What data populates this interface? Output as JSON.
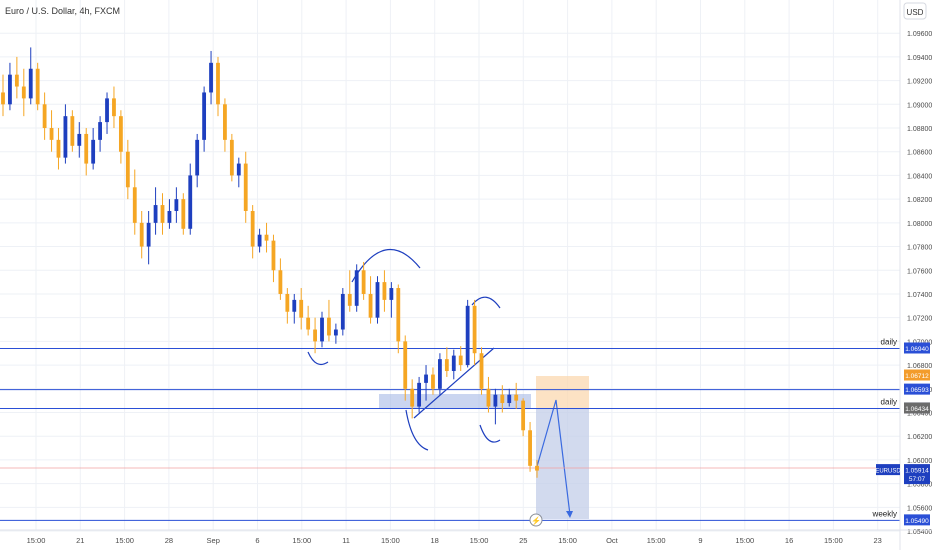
{
  "header": {
    "symbol_title": "Euro / U.S. Dollar, 4h, FXCM"
  },
  "currency_button": "USD",
  "colors": {
    "bull": "#1e3fbf",
    "bear": "#f5a623",
    "hline": "#2a4fd6",
    "grid": "#eef1f6",
    "text": "#4a4a4a",
    "price_line": "#f0a0a0"
  },
  "chart_data": {
    "type": "candlestick",
    "ylim": [
      1.0524,
      1.0988
    ],
    "y_ticks": [
      "1.09600",
      "1.09400",
      "1.09200",
      "1.09000",
      "1.08800",
      "1.08600",
      "1.08400",
      "1.08200",
      "1.08000",
      "1.07800",
      "1.07600",
      "1.07400",
      "1.07200",
      "1.07000",
      "1.06800",
      "1.06600",
      "1.06400",
      "1.06200",
      "1.06000",
      "1.05800",
      "1.05600",
      "1.05400"
    ],
    "x_ticks": [
      "15:00",
      "21",
      "15:00",
      "28",
      "Sep",
      "6",
      "15:00",
      "11",
      "15:00",
      "18",
      "15:00",
      "25",
      "15:00",
      "Oct",
      "15:00",
      "9",
      "15:00",
      "16",
      "15:00",
      "23"
    ],
    "candles": [
      [
        1.091,
        1.0925,
        1.089,
        1.09
      ],
      [
        1.09,
        1.0935,
        1.0895,
        1.0925
      ],
      [
        1.0925,
        1.094,
        1.0905,
        1.0915
      ],
      [
        1.0915,
        1.093,
        1.089,
        1.0905
      ],
      [
        1.0905,
        1.0948,
        1.09,
        1.093
      ],
      [
        1.093,
        1.0935,
        1.0895,
        1.09
      ],
      [
        1.09,
        1.091,
        1.087,
        1.088
      ],
      [
        1.088,
        1.0895,
        1.086,
        1.087
      ],
      [
        1.087,
        1.088,
        1.0845,
        1.0855
      ],
      [
        1.0855,
        1.09,
        1.085,
        1.089
      ],
      [
        1.089,
        1.0895,
        1.086,
        1.0865
      ],
      [
        1.0865,
        1.0885,
        1.0855,
        1.0875
      ],
      [
        1.0875,
        1.088,
        1.084,
        1.085
      ],
      [
        1.085,
        1.088,
        1.0845,
        1.087
      ],
      [
        1.087,
        1.089,
        1.086,
        1.0885
      ],
      [
        1.0885,
        1.091,
        1.0875,
        1.0905
      ],
      [
        1.0905,
        1.0915,
        1.088,
        1.089
      ],
      [
        1.089,
        1.0895,
        1.085,
        1.086
      ],
      [
        1.086,
        1.087,
        1.082,
        1.083
      ],
      [
        1.083,
        1.0845,
        1.079,
        1.08
      ],
      [
        1.08,
        1.081,
        1.077,
        1.078
      ],
      [
        1.078,
        1.081,
        1.0765,
        1.08
      ],
      [
        1.08,
        1.083,
        1.079,
        1.0815
      ],
      [
        1.0815,
        1.0825,
        1.079,
        1.08
      ],
      [
        1.08,
        1.082,
        1.0795,
        1.081
      ],
      [
        1.081,
        1.083,
        1.08,
        1.082
      ],
      [
        1.082,
        1.0825,
        1.079,
        1.0795
      ],
      [
        1.0795,
        1.085,
        1.079,
        1.084
      ],
      [
        1.084,
        1.0875,
        1.083,
        1.087
      ],
      [
        1.087,
        1.0915,
        1.086,
        1.091
      ],
      [
        1.091,
        1.0945,
        1.09,
        1.0935
      ],
      [
        1.0935,
        1.094,
        1.089,
        1.09
      ],
      [
        1.09,
        1.0905,
        1.086,
        1.087
      ],
      [
        1.087,
        1.0875,
        1.0835,
        1.084
      ],
      [
        1.084,
        1.0855,
        1.083,
        1.085
      ],
      [
        1.085,
        1.086,
        1.08,
        1.081
      ],
      [
        1.081,
        1.0815,
        1.077,
        1.078
      ],
      [
        1.078,
        1.0795,
        1.0775,
        1.079
      ],
      [
        1.079,
        1.08,
        1.0775,
        1.0785
      ],
      [
        1.0785,
        1.079,
        1.075,
        1.076
      ],
      [
        1.076,
        1.077,
        1.0735,
        1.074
      ],
      [
        1.074,
        1.0745,
        1.0715,
        1.0725
      ],
      [
        1.0725,
        1.074,
        1.0715,
        1.0735
      ],
      [
        1.0735,
        1.0745,
        1.071,
        1.072
      ],
      [
        1.072,
        1.073,
        1.0705,
        1.071
      ],
      [
        1.071,
        1.072,
        1.069,
        1.07
      ],
      [
        1.07,
        1.0725,
        1.0695,
        1.072
      ],
      [
        1.072,
        1.0735,
        1.07,
        1.0705
      ],
      [
        1.0705,
        1.0715,
        1.0698,
        1.071
      ],
      [
        1.071,
        1.0745,
        1.0705,
        1.074
      ],
      [
        1.074,
        1.076,
        1.0725,
        1.073
      ],
      [
        1.073,
        1.0765,
        1.0725,
        1.076
      ],
      [
        1.076,
        1.0767,
        1.0735,
        1.074
      ],
      [
        1.074,
        1.0755,
        1.0715,
        1.072
      ],
      [
        1.072,
        1.0755,
        1.0715,
        1.075
      ],
      [
        1.075,
        1.076,
        1.0725,
        1.0735
      ],
      [
        1.0735,
        1.075,
        1.072,
        1.0745
      ],
      [
        1.0745,
        1.0748,
        1.069,
        1.07
      ],
      [
        1.07,
        1.0705,
        1.065,
        1.066
      ],
      [
        1.066,
        1.0668,
        1.0635,
        1.0645
      ],
      [
        1.0645,
        1.067,
        1.064,
        1.0665
      ],
      [
        1.0665,
        1.068,
        1.065,
        1.0672
      ],
      [
        1.0672,
        1.0678,
        1.0655,
        1.066
      ],
      [
        1.066,
        1.069,
        1.0655,
        1.0685
      ],
      [
        1.0685,
        1.0695,
        1.067,
        1.0675
      ],
      [
        1.0675,
        1.0693,
        1.0668,
        1.0688
      ],
      [
        1.0688,
        1.0696,
        1.0675,
        1.068
      ],
      [
        1.068,
        1.0735,
        1.0678,
        1.073
      ],
      [
        1.073,
        1.0735,
        1.068,
        1.069
      ],
      [
        1.069,
        1.0695,
        1.0655,
        1.066
      ],
      [
        1.066,
        1.067,
        1.064,
        1.0645
      ],
      [
        1.0645,
        1.066,
        1.063,
        1.0655
      ],
      [
        1.0655,
        1.0663,
        1.064,
        1.0648
      ],
      [
        1.0648,
        1.066,
        1.0645,
        1.0655
      ],
      [
        1.0655,
        1.0665,
        1.0643,
        1.065
      ],
      [
        1.065,
        1.0652,
        1.062,
        1.0625
      ],
      [
        1.0625,
        1.0632,
        1.059,
        1.0595
      ],
      [
        1.0595,
        1.06,
        1.0585,
        1.0591
      ]
    ],
    "horizontal_levels": [
      {
        "price": 1.0694,
        "label": "daily"
      },
      {
        "price": 1.06593,
        "label": ""
      },
      {
        "price": 1.06434,
        "label": "daily"
      },
      {
        "price": 1.0549,
        "label": "weekly"
      }
    ],
    "price_tags": [
      {
        "text": "1.06940",
        "bg": "#2a4fd6"
      },
      {
        "text": "1.06712",
        "bg": "#f39c2b"
      },
      {
        "text": "1.06593",
        "bg": "#2a4fd6"
      },
      {
        "text": "1.06434",
        "bg": "#2a4fd6"
      },
      {
        "text": "1.06434",
        "bg": "#6b6b6b"
      },
      {
        "text": "1.05490",
        "bg": "#2a4fd6"
      }
    ],
    "current_price": {
      "symbol": "EURUSD",
      "price": "1.05914",
      "countdown": "57:07"
    }
  }
}
